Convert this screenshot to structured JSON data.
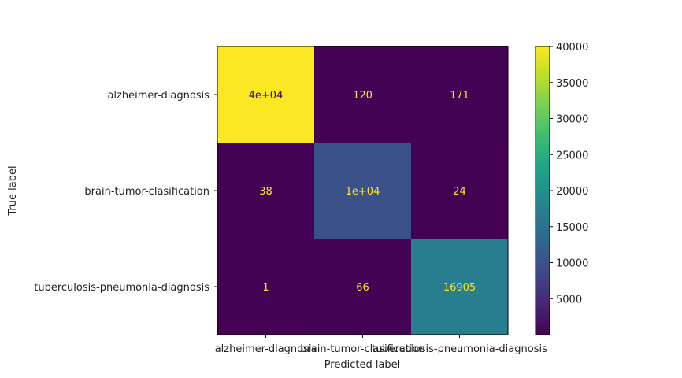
{
  "chart_data": {
    "type": "heatmap",
    "title": "",
    "xlabel": "Predicted label",
    "ylabel": "True label",
    "categories": [
      "alzheimer-diagnosis",
      "brain-tumor-clasification",
      "tuberculosis-pneumonia-diagnosis"
    ],
    "matrix": [
      [
        40000,
        120,
        171
      ],
      [
        38,
        10000,
        24
      ],
      [
        1,
        66,
        16905
      ]
    ],
    "cell_labels": [
      [
        "4e+04",
        "120",
        "171"
      ],
      [
        "38",
        "1e+04",
        "24"
      ],
      [
        "1",
        "66",
        "16905"
      ]
    ],
    "colormap": "viridis",
    "colorbar": {
      "range": [
        1,
        40000
      ],
      "ticks": [
        5000,
        10000,
        15000,
        20000,
        25000,
        30000,
        35000,
        40000
      ],
      "tick_labels": [
        "5000",
        "10000",
        "15000",
        "20000",
        "25000",
        "30000",
        "35000",
        "40000"
      ]
    },
    "text_colors": {
      "on_dark": "#fde725",
      "on_light": "#440154"
    },
    "grid": false
  }
}
